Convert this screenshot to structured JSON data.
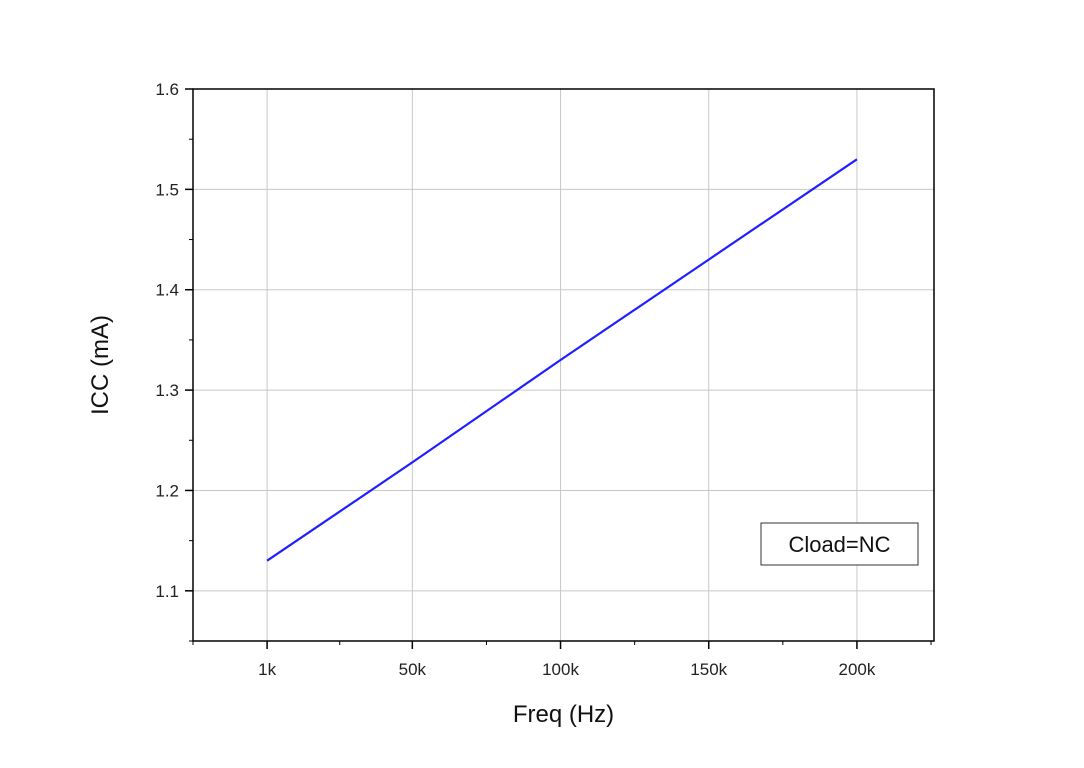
{
  "chart_data": {
    "type": "line",
    "xlabel": "Freq (Hz)",
    "ylabel": "ICC (mA)",
    "x_ticks": [
      {
        "value": 1,
        "label": "1k"
      },
      {
        "value": 50,
        "label": "50k"
      },
      {
        "value": 100,
        "label": "100k"
      },
      {
        "value": 150,
        "label": "150k"
      },
      {
        "value": 200,
        "label": "200k"
      }
    ],
    "y_ticks": [
      {
        "value": 1.1,
        "label": "1.1"
      },
      {
        "value": 1.2,
        "label": "1.2"
      },
      {
        "value": 1.3,
        "label": "1.3"
      },
      {
        "value": 1.4,
        "label": "1.4"
      },
      {
        "value": 1.5,
        "label": "1.5"
      },
      {
        "value": 1.6,
        "label": "1.6"
      }
    ],
    "xlim": [
      -24,
      226
    ],
    "ylim": [
      1.05,
      1.6
    ],
    "grid": true,
    "series": [
      {
        "color": "#1f1fff",
        "points": [
          [
            1,
            1.13
          ],
          [
            50,
            1.228
          ],
          [
            100,
            1.33
          ],
          [
            150,
            1.43
          ],
          [
            200,
            1.53
          ]
        ]
      }
    ],
    "annotation": {
      "text": "Cload=NC",
      "placement": "bottom-right"
    }
  }
}
